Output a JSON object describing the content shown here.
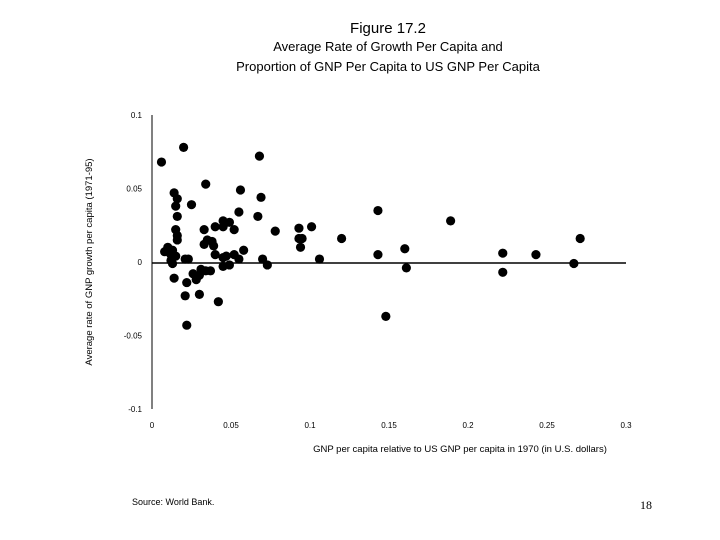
{
  "figure": {
    "number": "Figure 17.2",
    "title_line1": "Average Rate of Growth Per Capita and",
    "title_line2": "Proportion of GNP Per Capita to US GNP Per Capita",
    "source": "Source:  World Bank.",
    "page_number": "18"
  },
  "chart_data": {
    "type": "scatter",
    "title": "Average Rate of Growth Per Capita and Proportion of GNP Per Capita to US GNP Per Capita",
    "xlabel": "GNP per capita relative to US GNP per capita in 1970 (in U.S. dollars)",
    "ylabel": "Average rate of GNP growth per capita (1971-95)",
    "xlim": [
      0,
      0.3
    ],
    "ylim": [
      -0.1,
      0.1
    ],
    "x_ticks": [
      0,
      0.05,
      0.1,
      0.15,
      0.2,
      0.25,
      0.3
    ],
    "x_tick_labels": [
      "0",
      "0.05",
      "0.1",
      "0.15",
      "0.2",
      "0.25",
      "0.3"
    ],
    "y_ticks": [
      0.1,
      0.05,
      0,
      -0.05,
      -0.1
    ],
    "y_tick_labels": [
      "0.1",
      "0.05",
      "0",
      "-0.05",
      "-0.1"
    ],
    "zero_line": true,
    "grid": false,
    "legend": "none",
    "marker_color": "#000000",
    "points": [
      [
        0.006,
        0.068
      ],
      [
        0.02,
        0.078
      ],
      [
        0.068,
        0.072
      ],
      [
        0.034,
        0.053
      ],
      [
        0.056,
        0.049
      ],
      [
        0.069,
        0.044
      ],
      [
        0.014,
        0.047
      ],
      [
        0.016,
        0.043
      ],
      [
        0.015,
        0.038
      ],
      [
        0.025,
        0.039
      ],
      [
        0.016,
        0.031
      ],
      [
        0.055,
        0.034
      ],
      [
        0.067,
        0.031
      ],
      [
        0.045,
        0.028
      ],
      [
        0.049,
        0.027
      ],
      [
        0.04,
        0.024
      ],
      [
        0.045,
        0.024
      ],
      [
        0.033,
        0.022
      ],
      [
        0.052,
        0.022
      ],
      [
        0.015,
        0.022
      ],
      [
        0.016,
        0.018
      ],
      [
        0.016,
        0.015
      ],
      [
        0.035,
        0.015
      ],
      [
        0.038,
        0.014
      ],
      [
        0.033,
        0.012
      ],
      [
        0.039,
        0.011
      ],
      [
        0.01,
        0.01
      ],
      [
        0.013,
        0.008
      ],
      [
        0.008,
        0.007
      ],
      [
        0.012,
        0.005
      ],
      [
        0.015,
        0.004
      ],
      [
        0.047,
        0.004
      ],
      [
        0.052,
        0.005
      ],
      [
        0.058,
        0.008
      ],
      [
        0.04,
        0.005
      ],
      [
        0.045,
        0.003
      ],
      [
        0.021,
        0.002
      ],
      [
        0.023,
        0.002
      ],
      [
        0.012,
        0.001
      ],
      [
        0.013,
        -0.001
      ],
      [
        0.055,
        0.002
      ],
      [
        0.07,
        0.002
      ],
      [
        0.049,
        -0.002
      ],
      [
        0.073,
        -0.002
      ],
      [
        0.045,
        -0.003
      ],
      [
        0.031,
        -0.005
      ],
      [
        0.034,
        -0.006
      ],
      [
        0.037,
        -0.006
      ],
      [
        0.03,
        -0.009
      ],
      [
        0.026,
        -0.008
      ],
      [
        0.014,
        -0.011
      ],
      [
        0.028,
        -0.012
      ],
      [
        0.022,
        -0.014
      ],
      [
        0.021,
        -0.023
      ],
      [
        0.03,
        -0.022
      ],
      [
        0.042,
        -0.027
      ],
      [
        0.022,
        -0.043
      ],
      [
        0.078,
        0.021
      ],
      [
        0.093,
        0.023
      ],
      [
        0.101,
        0.024
      ],
      [
        0.093,
        0.016
      ],
      [
        0.094,
        0.01
      ],
      [
        0.095,
        0.016
      ],
      [
        0.106,
        0.002
      ],
      [
        0.12,
        0.016
      ],
      [
        0.143,
        0.035
      ],
      [
        0.143,
        0.005
      ],
      [
        0.148,
        -0.037
      ],
      [
        0.16,
        0.009
      ],
      [
        0.161,
        -0.004
      ],
      [
        0.189,
        0.028
      ],
      [
        0.222,
        0.006
      ],
      [
        0.222,
        -0.007
      ],
      [
        0.243,
        0.005
      ],
      [
        0.267,
        -0.001
      ],
      [
        0.271,
        0.016
      ]
    ]
  }
}
